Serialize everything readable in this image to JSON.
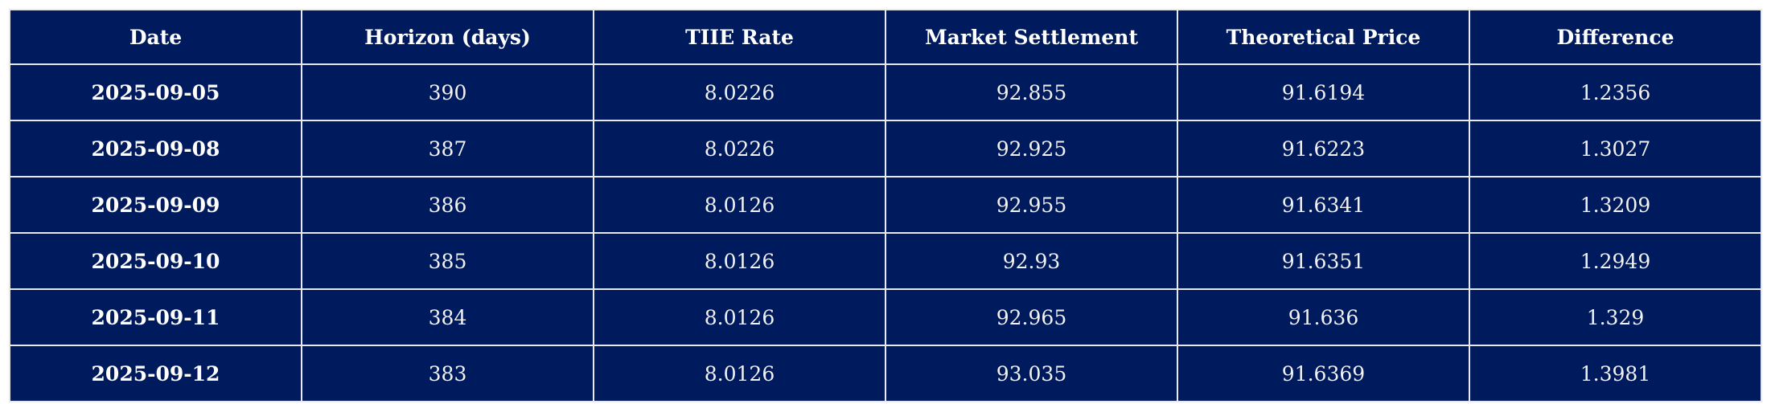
{
  "colors": {
    "cell_background": "#001a5e",
    "cell_border": "#e8e8ee",
    "text": "#ffffff"
  },
  "chart_data": {
    "type": "table",
    "columns": [
      "Date",
      "Horizon (days)",
      "TIIE Rate",
      "Market Settlement",
      "Theoretical Price",
      "Difference"
    ],
    "rows": [
      [
        "2025-09-05",
        "390",
        "8.0226",
        "92.855",
        "91.6194",
        "1.2356"
      ],
      [
        "2025-09-08",
        "387",
        "8.0226",
        "92.925",
        "91.6223",
        "1.3027"
      ],
      [
        "2025-09-09",
        "386",
        "8.0126",
        "92.955",
        "91.6341",
        "1.3209"
      ],
      [
        "2025-09-10",
        "385",
        "8.0126",
        "92.93",
        "91.6351",
        "1.2949"
      ],
      [
        "2025-09-11",
        "384",
        "8.0126",
        "92.965",
        "91.636",
        "1.329"
      ],
      [
        "2025-09-12",
        "383",
        "8.0126",
        "93.035",
        "91.6369",
        "1.3981"
      ]
    ]
  }
}
